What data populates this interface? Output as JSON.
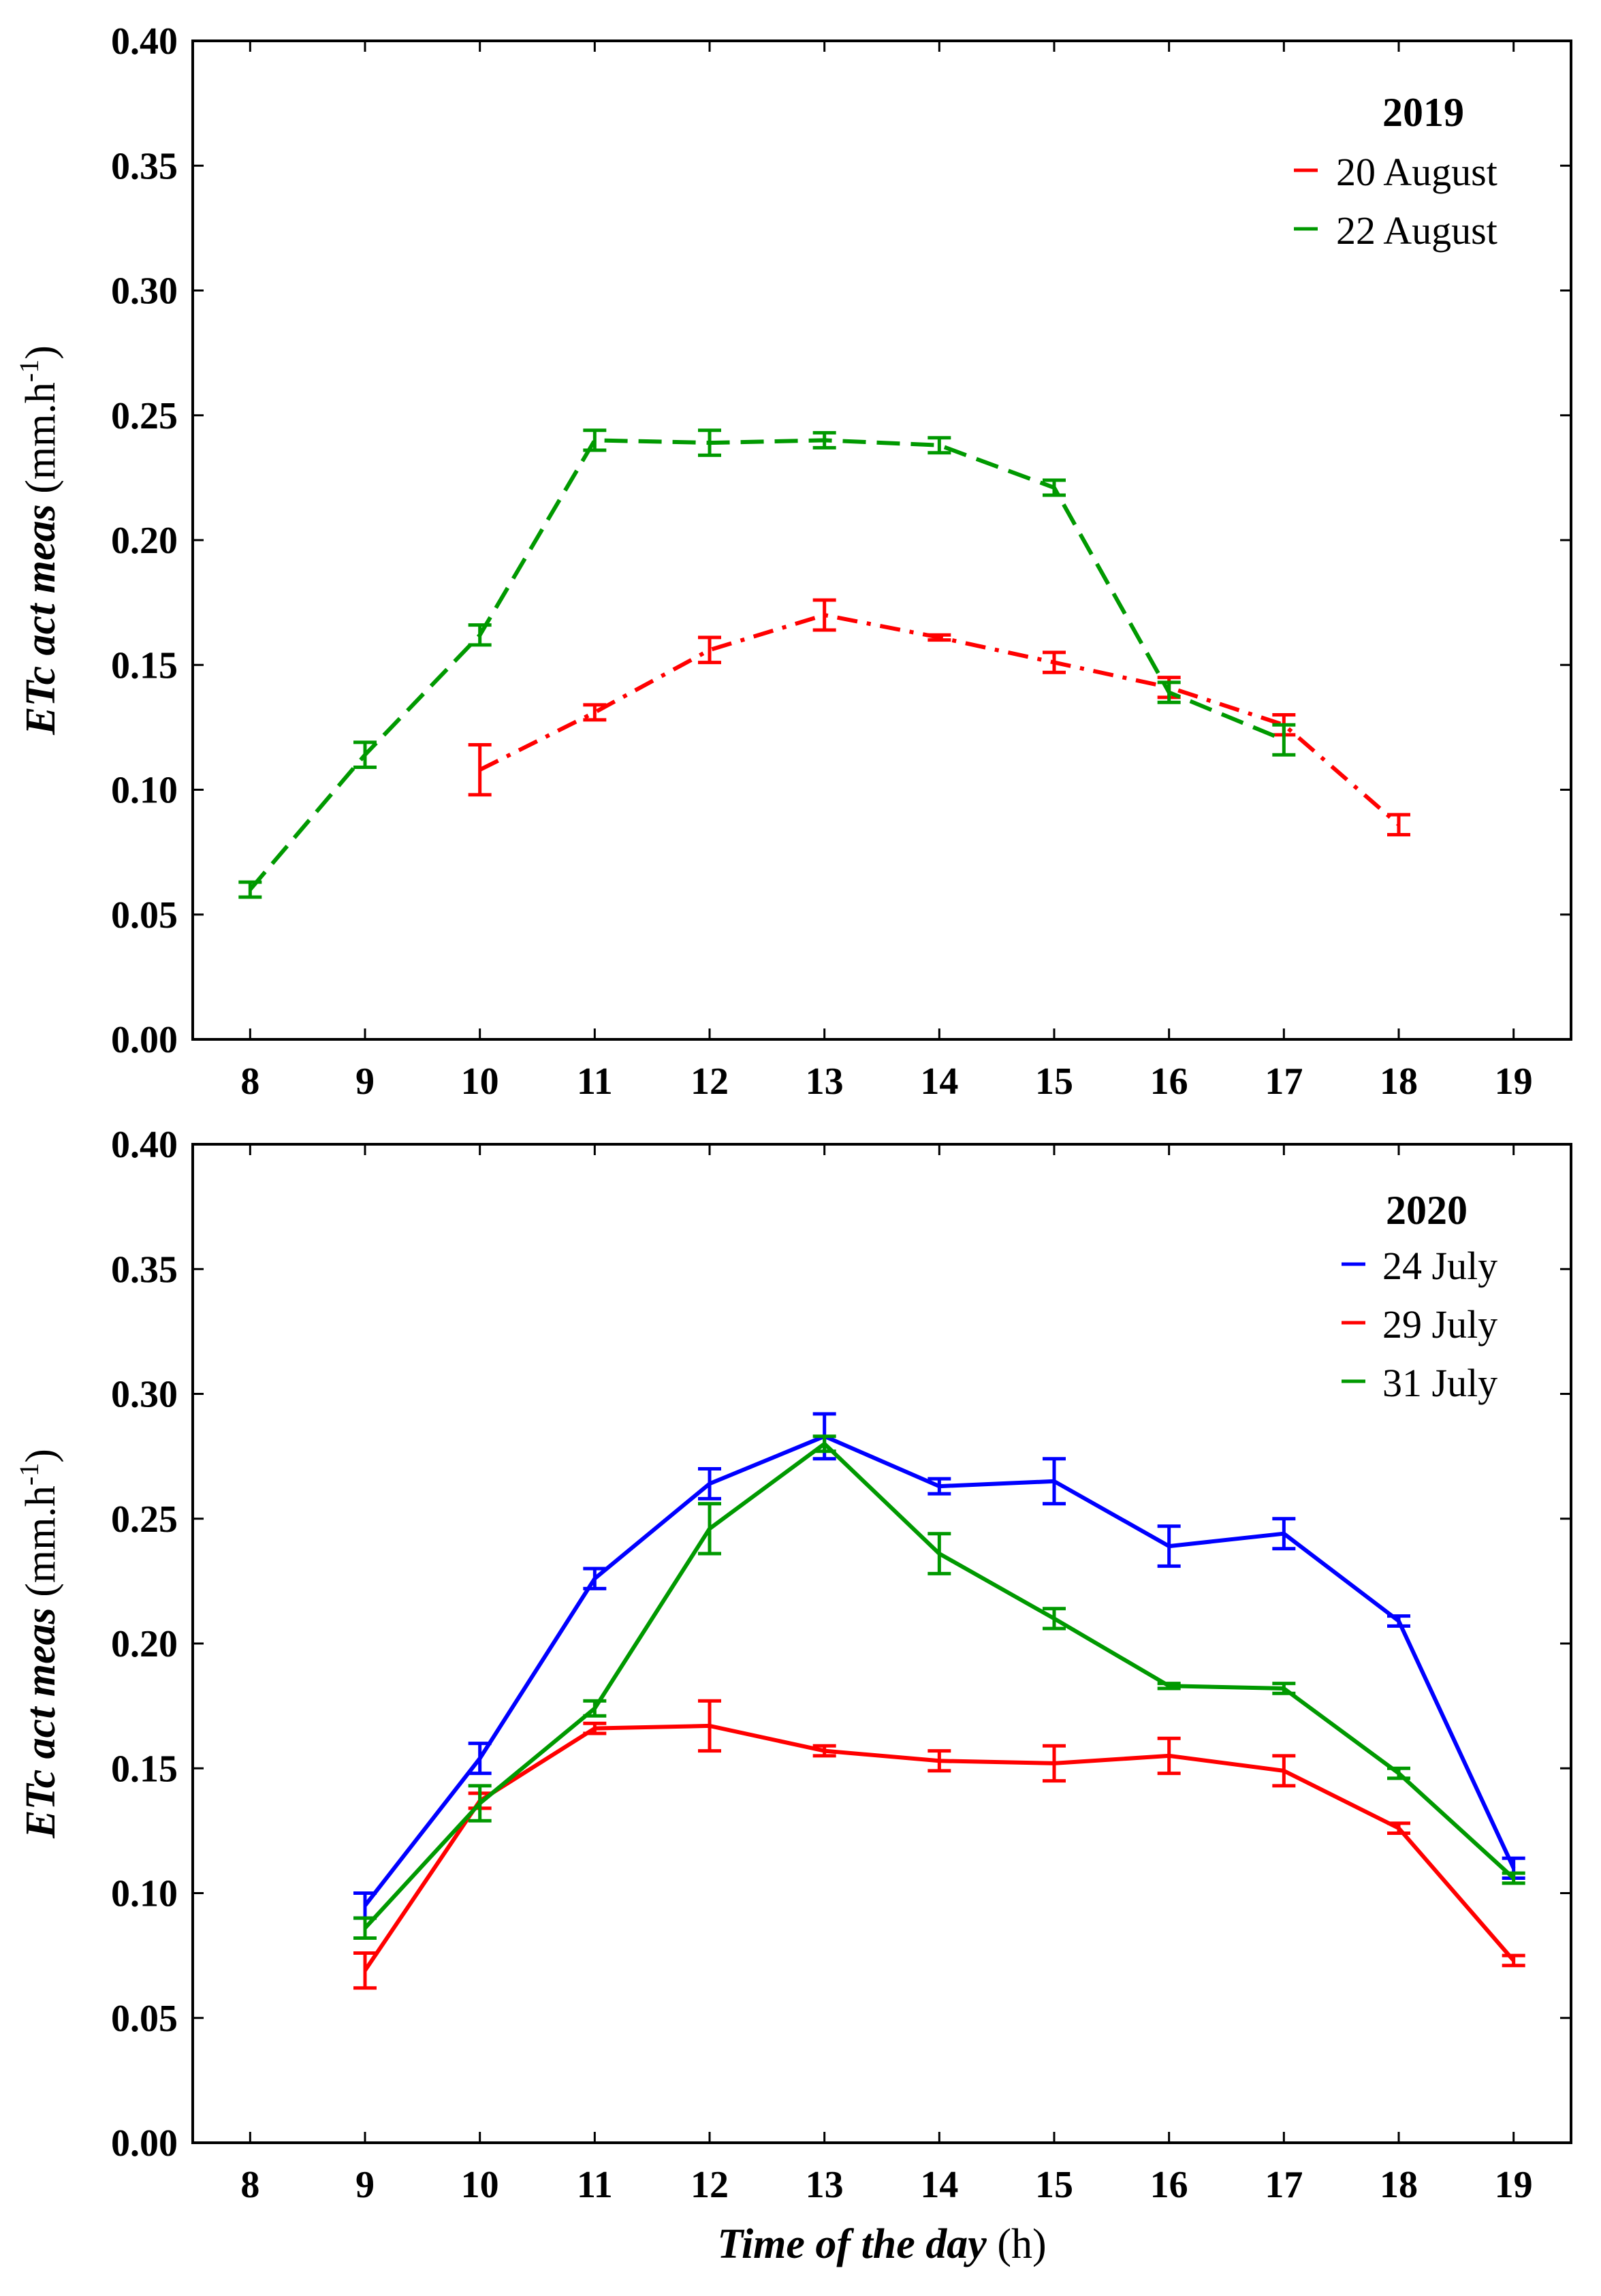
{
  "axis_text": {
    "ylabel_bold": "ETc act meas",
    "ylabel_unit": " (mm.h",
    "ylabel_sup": "-1",
    "ylabel_close": ")",
    "xlabel_bold": "Time of the day",
    "xlabel_unit": " (h)"
  },
  "chart_data": [
    {
      "type": "line",
      "legend_title": "2019",
      "legend_position": "top-right",
      "xlabel": "",
      "ylabel": "ETc act meas (mm.h-1)",
      "xlim": [
        7.5,
        19.5
      ],
      "ylim": [
        0,
        0.4
      ],
      "xticks": [
        "8",
        "9",
        "10",
        "11",
        "12",
        "13",
        "14",
        "15",
        "16",
        "17",
        "18",
        "19"
      ],
      "yticks": [
        "0.00",
        "0.05",
        "0.10",
        "0.15",
        "0.20",
        "0.25",
        "0.30",
        "0.35",
        "0.40"
      ],
      "series": [
        {
          "name": "20 August",
          "color": "#ff0000",
          "dash": "dashdot",
          "x": [
            10,
            11,
            12,
            13,
            14,
            15,
            16,
            17,
            18
          ],
          "values": [
            0.108,
            0.131,
            0.156,
            0.17,
            0.161,
            0.151,
            0.141,
            0.126,
            0.086
          ],
          "errors": [
            0.01,
            0.003,
            0.005,
            0.006,
            0.001,
            0.004,
            0.004,
            0.004,
            0.004
          ]
        },
        {
          "name": "22 August",
          "color": "#009900",
          "dash": "dashed",
          "x": [
            8,
            9,
            10,
            11,
            12,
            13,
            14,
            15,
            16,
            17
          ],
          "values": [
            0.06,
            0.114,
            0.162,
            0.24,
            0.239,
            0.24,
            0.238,
            0.221,
            0.139,
            0.12
          ],
          "errors": [
            0.003,
            0.005,
            0.004,
            0.004,
            0.005,
            0.003,
            0.003,
            0.003,
            0.004,
            0.006
          ]
        }
      ]
    },
    {
      "type": "line",
      "legend_title": "2020",
      "legend_position": "top-right",
      "xlabel": "Time of the day (h)",
      "ylabel": "ETc act meas (mm.h-1)",
      "xlim": [
        7.5,
        19.5
      ],
      "ylim": [
        0,
        0.4
      ],
      "xticks": [
        "8",
        "9",
        "10",
        "11",
        "12",
        "13",
        "14",
        "15",
        "16",
        "17",
        "18",
        "19"
      ],
      "yticks": [
        "0.00",
        "0.05",
        "0.10",
        "0.15",
        "0.20",
        "0.25",
        "0.30",
        "0.35",
        "0.40"
      ],
      "series": [
        {
          "name": "24 July",
          "color": "#0000ff",
          "dash": "solid",
          "x": [
            9,
            10,
            11,
            12,
            13,
            14,
            15,
            16,
            17,
            18,
            19
          ],
          "values": [
            0.095,
            0.154,
            0.226,
            0.264,
            0.283,
            0.263,
            0.265,
            0.239,
            0.244,
            0.209,
            0.11
          ],
          "errors": [
            0.005,
            0.006,
            0.004,
            0.006,
            0.009,
            0.003,
            0.009,
            0.008,
            0.006,
            0.002,
            0.004
          ]
        },
        {
          "name": "29 July",
          "color": "#ff0000",
          "dash": "solid",
          "x": [
            9,
            10,
            11,
            12,
            13,
            14,
            15,
            16,
            17,
            18,
            19
          ],
          "values": [
            0.069,
            0.137,
            0.166,
            0.167,
            0.157,
            0.153,
            0.152,
            0.155,
            0.149,
            0.126,
            0.073
          ],
          "errors": [
            0.007,
            0.003,
            0.002,
            0.01,
            0.002,
            0.004,
            0.007,
            0.007,
            0.006,
            0.002,
            0.002
          ]
        },
        {
          "name": "31 July",
          "color": "#009900",
          "dash": "solid",
          "x": [
            9,
            10,
            11,
            12,
            13,
            14,
            15,
            16,
            17,
            18,
            19
          ],
          "values": [
            0.086,
            0.136,
            0.174,
            0.246,
            0.28,
            0.236,
            0.21,
            0.183,
            0.182,
            0.148,
            0.106
          ],
          "errors": [
            0.004,
            0.007,
            0.003,
            0.01,
            0.003,
            0.008,
            0.004,
            0.001,
            0.002,
            0.002,
            0.002
          ]
        }
      ]
    }
  ]
}
